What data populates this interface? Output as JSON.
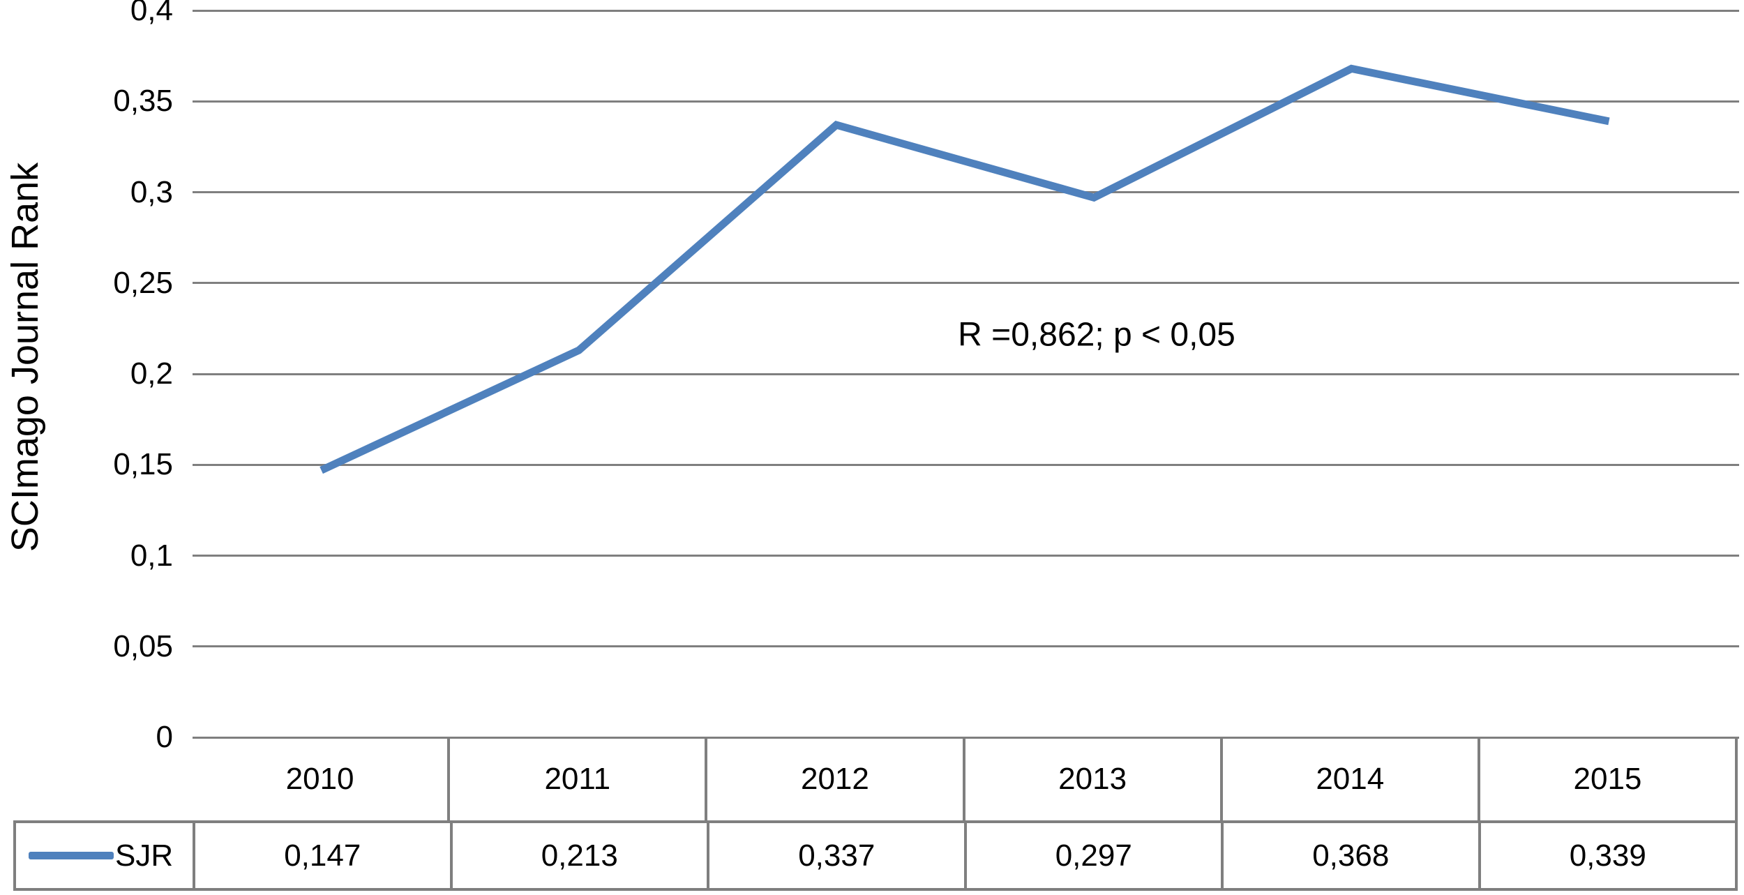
{
  "chart_data": {
    "type": "line",
    "title": "",
    "xlabel": "",
    "ylabel": "SCImago Journal Rank",
    "categories": [
      "2010",
      "2011",
      "2012",
      "2013",
      "2014",
      "2015"
    ],
    "series": [
      {
        "name": "SJR",
        "values": [
          0.147,
          0.213,
          0.337,
          0.297,
          0.368,
          0.339
        ],
        "values_display": [
          "0,147",
          "0,213",
          "0,337",
          "0,297",
          "0,368",
          "0,339"
        ],
        "color": "#4F81BD"
      }
    ],
    "ylim": [
      0,
      0.4
    ],
    "ytick_step": 0.05,
    "yticks_display": [
      "0",
      "0,05",
      "0,1",
      "0,15",
      "0,2",
      "0,25",
      "0,3",
      "0,35",
      "0,4"
    ],
    "annotation": "R =0,862; p < 0,05",
    "grid": true,
    "grid_color": "#7F7F7F",
    "legend_position": "bottom-left-table",
    "decimal_separator": ","
  }
}
